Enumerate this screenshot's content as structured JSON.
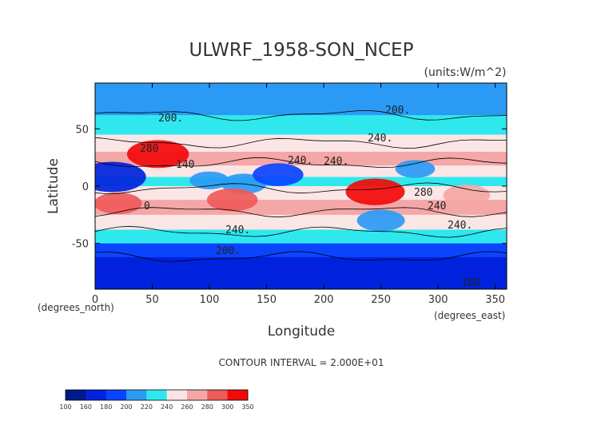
{
  "chart_data": {
    "type": "heatmap",
    "title": "ULWRF_1958-SON_NCEP",
    "units": "(units:W/m^2)",
    "xlabel": "Longitude",
    "ylabel": "Latitude",
    "x_unit_label": "(degrees_east)",
    "y_unit_label": "(degrees_north)",
    "xlim": [
      0,
      360
    ],
    "ylim": [
      -90,
      90
    ],
    "x_ticks": [
      "0",
      "50",
      "100",
      "150",
      "200",
      "250",
      "300",
      "350"
    ],
    "y_ticks": [
      "50",
      "0",
      "-50"
    ],
    "contour_interval_text": "CONTOUR INTERVAL = 2.000E+01",
    "contour_labels": [
      "200.",
      "240.",
      "280",
      "200.",
      "240.",
      "140",
      "0",
      "240.",
      "200.",
      "240.",
      "280",
      "240",
      "240.",
      "180"
    ],
    "colorbar": {
      "levels": [
        "100",
        "160",
        "180",
        "200",
        "220",
        "240",
        "260",
        "280",
        "300",
        "350"
      ],
      "colors": [
        "#00198c",
        "#0022dd",
        "#0b44ff",
        "#2b9af5",
        "#2ee8ee",
        "#fbe6e6",
        "#f5a6a6",
        "#ef5a5a",
        "#f20a0a"
      ]
    },
    "latitude_profile": [
      {
        "lat": 90,
        "value": 205
      },
      {
        "lat": 75,
        "value": 195
      },
      {
        "lat": 62,
        "value": 212
      },
      {
        "lat": 45,
        "value": 232
      },
      {
        "lat": 30,
        "value": 262
      },
      {
        "lat": 18,
        "value": 258
      },
      {
        "lat": 8,
        "value": 232
      },
      {
        "lat": 0,
        "value": 238
      },
      {
        "lat": -12,
        "value": 268
      },
      {
        "lat": -25,
        "value": 268
      },
      {
        "lat": -38,
        "value": 245
      },
      {
        "lat": -50,
        "value": 212
      },
      {
        "lat": -62,
        "value": 185
      },
      {
        "lat": -75,
        "value": 168
      },
      {
        "lat": -90,
        "value": 158
      }
    ],
    "regional_features": [
      {
        "lon": 15,
        "lat": 8,
        "value": 165
      },
      {
        "lon": 55,
        "lat": 28,
        "value": 305
      },
      {
        "lon": 100,
        "lat": 5,
        "value": 215
      },
      {
        "lon": 130,
        "lat": 2,
        "value": 205
      },
      {
        "lon": 160,
        "lat": 10,
        "value": 195
      },
      {
        "lon": 245,
        "lat": -5,
        "value": 300
      },
      {
        "lon": 280,
        "lat": 15,
        "value": 215
      },
      {
        "lon": 325,
        "lat": -8,
        "value": 278
      },
      {
        "lon": 250,
        "lat": -30,
        "value": 200
      },
      {
        "lon": 120,
        "lat": -12,
        "value": 285
      },
      {
        "lon": 20,
        "lat": -15,
        "value": 280
      }
    ]
  }
}
